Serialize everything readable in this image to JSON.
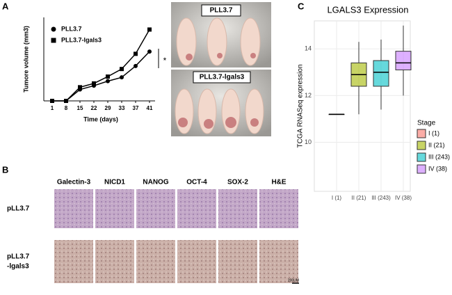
{
  "panel_labels": [
    "A",
    "B",
    "C"
  ],
  "chart_data": [
    {
      "type": "line",
      "xlabel": "Time (days)",
      "ylabel": "Tumore volume (mm3)",
      "categories": [
        "1",
        "8",
        "15",
        "22",
        "29",
        "33",
        "37",
        "41"
      ],
      "ylim": [
        0,
        1100
      ],
      "annotation": "*",
      "series": [
        {
          "name": "PLL3.7",
          "color": "#000000",
          "marker": "circle",
          "values": [
            0,
            0,
            150,
            200,
            260,
            310,
            460,
            650
          ]
        },
        {
          "name": "PLL3.7-lgals3",
          "color": "#000000",
          "marker": "square",
          "values": [
            0,
            0,
            180,
            230,
            320,
            420,
            620,
            940
          ]
        }
      ]
    },
    {
      "type": "box",
      "title": "LGALS3 Expression",
      "ylabel": "TCGA RNASeq expression",
      "categories": [
        "I (1)",
        "II (21)",
        "III (243)",
        "IV (38)"
      ],
      "ylim": [
        7.9,
        15.2
      ],
      "yticks": [
        10,
        12,
        14
      ],
      "grid": true,
      "legend_title": "Stage",
      "colors": [
        "#F8766D",
        "#A3B800",
        "#00BFC4",
        "#C77CFF"
      ],
      "boxes": [
        {
          "min": 11.2,
          "q1": 11.2,
          "median": 11.2,
          "q3": 11.2,
          "max": 11.2
        },
        {
          "min": 11.2,
          "q1": 12.4,
          "median": 12.9,
          "q3": 13.4,
          "max": 14.3
        },
        {
          "min": 11.4,
          "q1": 12.4,
          "median": 13.0,
          "q3": 13.5,
          "max": 14.4
        },
        {
          "min": 12.0,
          "q1": 13.1,
          "median": 13.4,
          "q3": 13.9,
          "max": 15.0
        }
      ]
    }
  ],
  "photos": {
    "labels": [
      "PLL3.7",
      "PLL3.7-lgals3"
    ]
  },
  "histology": {
    "columns": [
      "Galectin-3",
      "NICD1",
      "NANOG",
      "OCT-4",
      "SOX-2",
      "H&E"
    ],
    "rows": [
      [
        "pLL3.7"
      ],
      [
        "pLL3.7",
        "-lgals3"
      ]
    ],
    "scale": "200UM"
  }
}
